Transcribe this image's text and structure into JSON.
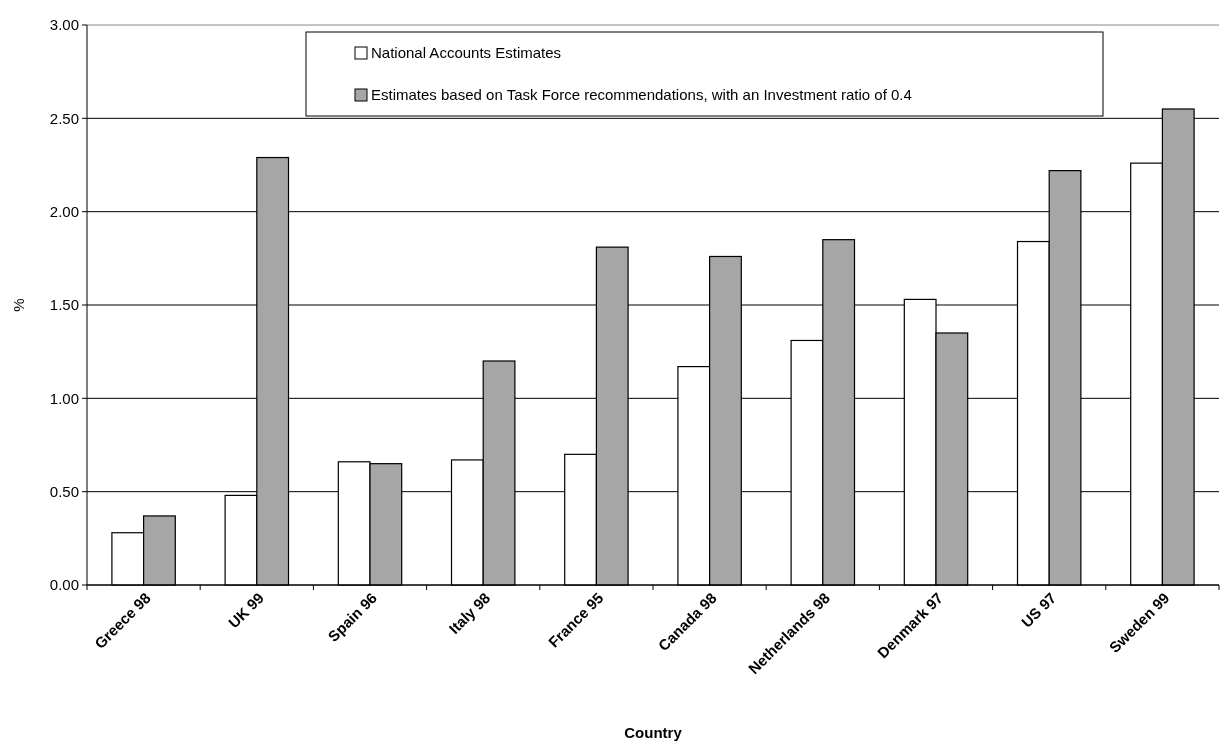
{
  "chart_data": {
    "type": "bar",
    "xlabel": "Country",
    "ylabel": "%",
    "categories": [
      "Greece 98",
      "UK 99",
      "Spain 96",
      "Italy 98",
      "France 95",
      "Canada 98",
      "Netherlands 98",
      "Denmark 97",
      "US 97",
      "Sweden 99"
    ],
    "series": [
      {
        "name": "National Accounts Estimates",
        "color": "#ffffff",
        "values": [
          0.28,
          0.48,
          0.66,
          0.67,
          0.7,
          1.17,
          1.31,
          1.53,
          1.84,
          2.26
        ]
      },
      {
        "name": "Estimates based on Task Force recommendations, with an Investment ratio of 0.4",
        "color": "#a6a6a6",
        "values": [
          0.37,
          2.29,
          0.65,
          1.2,
          1.81,
          1.76,
          1.85,
          1.35,
          2.22,
          2.55
        ]
      }
    ],
    "ylim": [
      0,
      3
    ],
    "yticks": [
      {
        "value": 0,
        "label": "0.00"
      },
      {
        "value": 0.5,
        "label": "0.50"
      },
      {
        "value": 1,
        "label": "1.00"
      },
      {
        "value": 1.5,
        "label": "1.50"
      },
      {
        "value": 2,
        "label": "2.00"
      },
      {
        "value": 2.5,
        "label": "2.50"
      },
      {
        "value": 3,
        "label": "3.00"
      }
    ],
    "grid": "y",
    "legend": "top"
  }
}
